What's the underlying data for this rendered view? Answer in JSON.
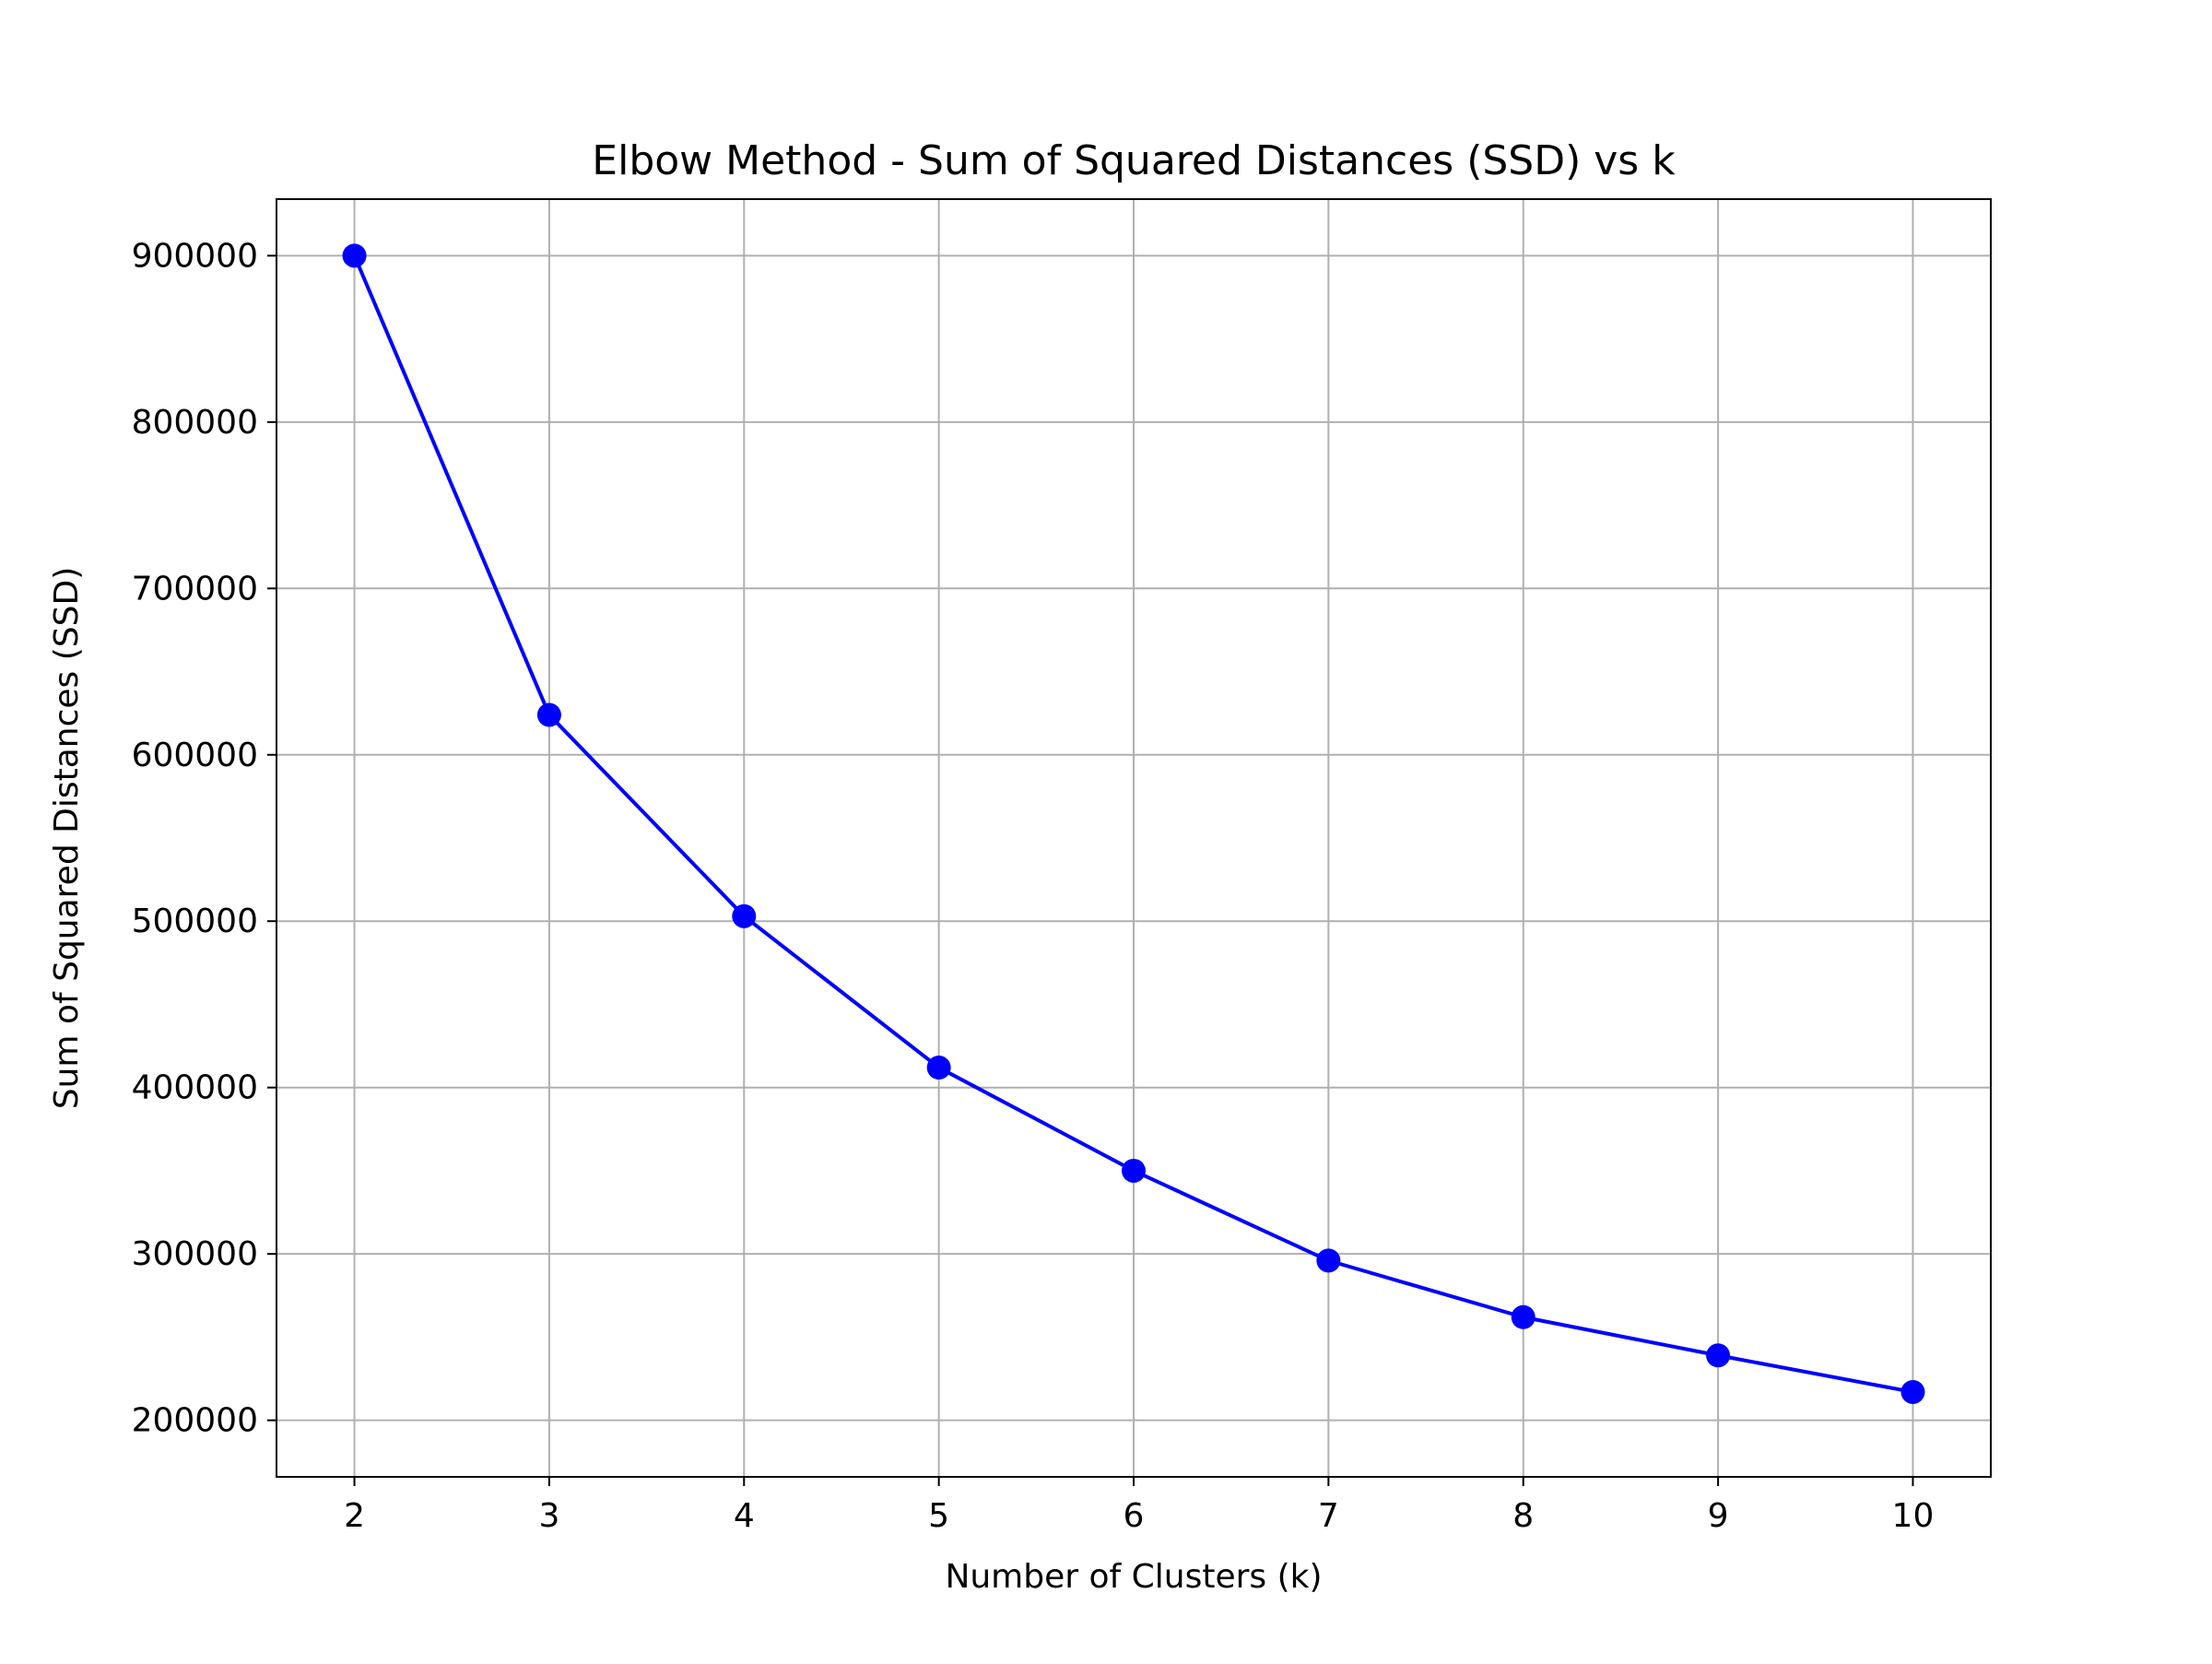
{
  "chart_data": {
    "type": "line",
    "title": "Elbow Method - Sum of Squared Distances (SSD) vs k",
    "xlabel": "Number of Clusters (k)",
    "ylabel": "Sum of Squared Distances (SSD)",
    "x": [
      2,
      3,
      4,
      5,
      6,
      7,
      8,
      9,
      10
    ],
    "series": [
      {
        "values": [
          900000,
          624000,
          503000,
          412000,
          350000,
          296000,
          262000,
          239000,
          217000
        ],
        "color": "#0000ff",
        "marker": "circle"
      }
    ],
    "xticks": [
      "2",
      "3",
      "4",
      "5",
      "6",
      "7",
      "8",
      "9",
      "10"
    ],
    "yticks": [
      "200000",
      "300000",
      "400000",
      "500000",
      "600000",
      "700000",
      "800000",
      "900000"
    ],
    "xlim": [
      1.6,
      10.4
    ],
    "ylim": [
      166000,
      934000
    ],
    "grid": true,
    "grid_color": "#b0b0b0"
  }
}
